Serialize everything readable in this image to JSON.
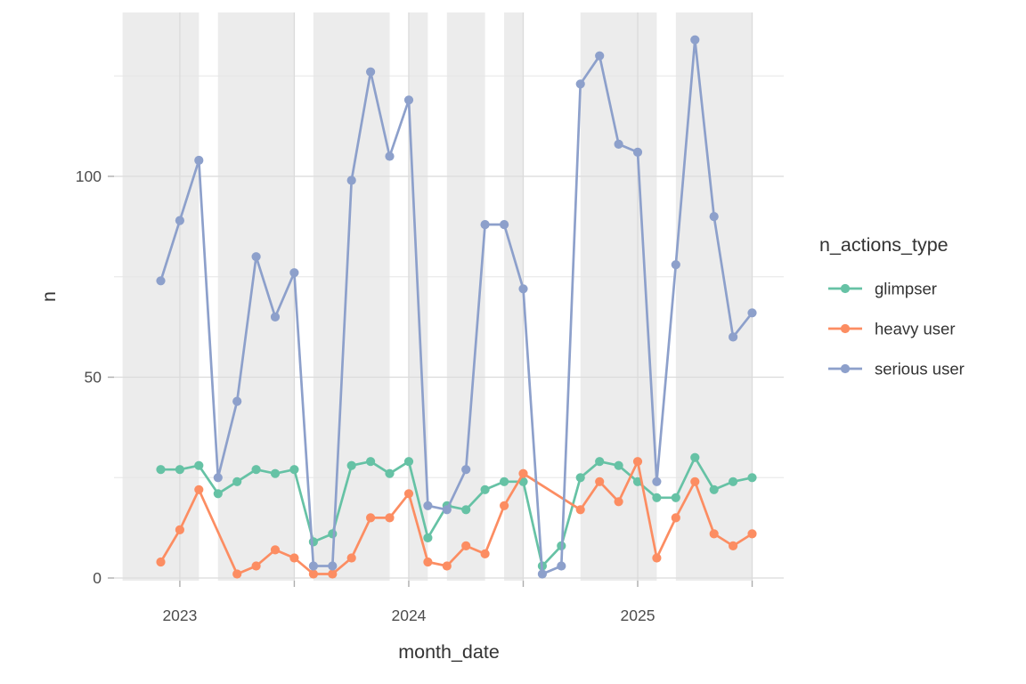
{
  "chart_data": {
    "type": "line",
    "title": "",
    "xlabel": "month_date",
    "ylabel": "n",
    "legend_title": "n_actions_type",
    "legend_position": "right",
    "x": [
      "2022-12",
      "2023-01",
      "2023-02",
      "2023-03",
      "2023-04",
      "2023-05",
      "2023-06",
      "2023-07",
      "2023-08",
      "2023-09",
      "2023-10",
      "2023-11",
      "2023-12",
      "2024-01",
      "2024-02",
      "2024-03",
      "2024-04",
      "2024-05",
      "2024-06",
      "2024-07",
      "2024-08",
      "2024-09",
      "2024-10",
      "2024-11",
      "2024-12",
      "2025-01",
      "2025-02",
      "2025-03",
      "2025-04",
      "2025-05",
      "2025-06",
      "2025-07"
    ],
    "series": [
      {
        "name": "glimpser",
        "color": "#66C2A5",
        "values": [
          27,
          27,
          28,
          21,
          24,
          27,
          26,
          27,
          9,
          11,
          28,
          29,
          26,
          29,
          10,
          18,
          17,
          22,
          24,
          24,
          3,
          8,
          25,
          29,
          28,
          24,
          20,
          20,
          30,
          22,
          24,
          25
        ]
      },
      {
        "name": "heavy user",
        "color": "#FC8D62",
        "values": [
          4,
          12,
          22,
          null,
          1,
          3,
          7,
          5,
          1,
          1,
          5,
          15,
          15,
          21,
          4,
          3,
          8,
          6,
          18,
          26,
          null,
          null,
          17,
          24,
          19,
          29,
          5,
          15,
          24,
          11,
          8,
          11
        ]
      },
      {
        "name": "serious user",
        "color": "#8DA0CB",
        "values": [
          74,
          89,
          104,
          25,
          44,
          80,
          65,
          76,
          3,
          3,
          99,
          126,
          105,
          119,
          18,
          17,
          27,
          88,
          88,
          72,
          1,
          3,
          123,
          130,
          108,
          106,
          24,
          78,
          134,
          90,
          60,
          66
        ]
      }
    ],
    "y_ticks_major": [
      0,
      50,
      100
    ],
    "y_ticks_minor": [
      25,
      75,
      125
    ],
    "x_ticks": [
      {
        "index": 1,
        "label": "2023"
      },
      {
        "index": 7,
        "label": ""
      },
      {
        "index": 13,
        "label": "2024"
      },
      {
        "index": 19,
        "label": ""
      },
      {
        "index": 25,
        "label": "2025"
      },
      {
        "index": 31,
        "label": ""
      }
    ],
    "shaded_bands_month_index": [
      {
        "from": -2,
        "to": 2
      },
      {
        "from": 3,
        "to": 7
      },
      {
        "from": 8,
        "to": 12
      },
      {
        "from": 13,
        "to": 14
      },
      {
        "from": 15,
        "to": 17
      },
      {
        "from": 18,
        "to": 19
      },
      {
        "from": 22,
        "to": 26
      },
      {
        "from": 27,
        "to": 31
      }
    ],
    "grid": true,
    "colors": {
      "band": "#ECECEC",
      "grid_major": "#DBDBDB",
      "grid_minor": "#E6E6E6",
      "tick": "#ADADAD",
      "axis_text": "#4D4D4D",
      "title_text": "#333333"
    }
  }
}
